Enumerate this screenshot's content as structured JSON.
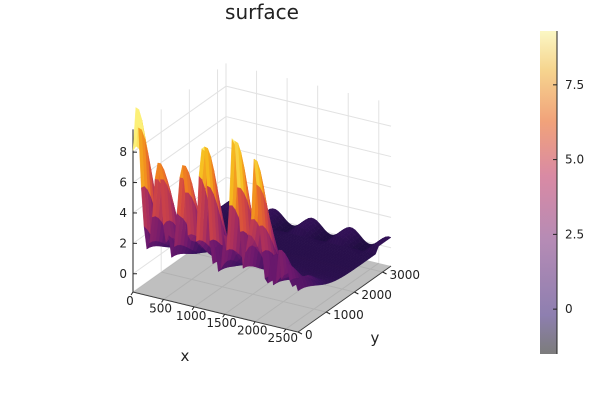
{
  "chart_data": {
    "type": "surface",
    "title": "surface",
    "xlabel": "x",
    "ylabel": "y",
    "zlabel": "",
    "xlim": [
      0,
      2700
    ],
    "ylim": [
      0,
      3300
    ],
    "zlim": [
      -1.2,
      9.5
    ],
    "x_ticks": [
      "0",
      "500",
      "1000",
      "1500",
      "2000",
      "2500"
    ],
    "x_tick_values": [
      0,
      500,
      1000,
      1500,
      2000,
      2500
    ],
    "y_ticks": [
      "0",
      "1000",
      "2000",
      "3000"
    ],
    "y_tick_values": [
      0,
      1000,
      2000,
      3000
    ],
    "z_ticks": [
      "0",
      "2",
      "4",
      "6",
      "8"
    ],
    "z_tick_values": [
      0,
      2,
      4,
      6,
      8
    ],
    "colorbar": {
      "ticks": [
        "0",
        "2.5",
        "5.0",
        "7.5"
      ],
      "tick_values": [
        0,
        2.5,
        5.0,
        7.5
      ],
      "range": [
        -1.5,
        9.3
      ],
      "colormap": "inferno"
    },
    "peaks_along_front_edge": [
      {
        "x": 50,
        "z": 9.3
      },
      {
        "x": 400,
        "z": 6.5
      },
      {
        "x": 800,
        "z": 6.8
      },
      {
        "x": 1150,
        "z": 8.7
      },
      {
        "x": 1650,
        "z": 9.4
      },
      {
        "x": 2000,
        "z": 7.0
      },
      {
        "x": 2500,
        "z": 1.2
      }
    ],
    "grid": true,
    "colors": {
      "low": "#2a0f4a",
      "mid": "#c03a6b",
      "high": "#f6d746",
      "shadow": "#8a8a8a"
    }
  }
}
